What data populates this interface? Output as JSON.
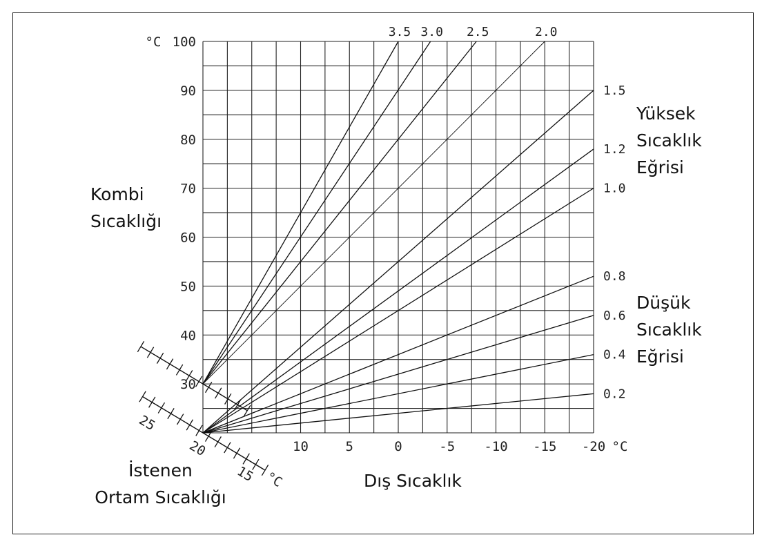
{
  "chart_data": {
    "type": "line",
    "title": "",
    "y_axis": {
      "label_lines": [
        "Kombi",
        "Sıcaklığı"
      ],
      "unit": "°C",
      "range": [
        20,
        100
      ],
      "tick_values": [
        30,
        40,
        50,
        60,
        70,
        80,
        90,
        100
      ],
      "tick_labels": [
        "30",
        "40",
        "50",
        "60",
        "70",
        "80",
        "90",
        "100"
      ]
    },
    "x_axis": {
      "label": "Dış Sıcaklık",
      "unit": "°C",
      "range": [
        20,
        -20
      ],
      "tick_values": [
        10,
        5,
        0,
        -5,
        -10,
        -15,
        -20
      ],
      "tick_labels": [
        "10",
        "5",
        "0",
        "-5",
        "-10",
        "-15",
        "-20"
      ]
    },
    "room_temp_axis": {
      "label_lines": [
        "İstenen",
        "Ortam Sıcaklığı"
      ],
      "unit": "°C",
      "tick_labels": [
        "25",
        "20",
        "15"
      ]
    },
    "series": [
      {
        "name": "3.5",
        "points": [
          [
            20,
            30
          ],
          [
            0.0,
            100
          ]
        ]
      },
      {
        "name": "3.0",
        "points": [
          [
            20,
            30
          ],
          [
            -3.3,
            100
          ]
        ]
      },
      {
        "name": "2.5",
        "points": [
          [
            20,
            30
          ],
          [
            -8.0,
            100
          ]
        ]
      },
      {
        "name": "2.0",
        "points": [
          [
            20,
            30
          ],
          [
            -15.0,
            100
          ]
        ]
      },
      {
        "name": "1.5",
        "points": [
          [
            20,
            20
          ],
          [
            -20,
            90
          ]
        ]
      },
      {
        "name": "1.2",
        "points": [
          [
            20,
            20
          ],
          [
            -20,
            78
          ]
        ]
      },
      {
        "name": "1.0",
        "points": [
          [
            20,
            20
          ],
          [
            -20,
            70
          ]
        ]
      },
      {
        "name": "0.8",
        "points": [
          [
            20,
            20
          ],
          [
            -20,
            52
          ]
        ]
      },
      {
        "name": "0.6",
        "points": [
          [
            20,
            20
          ],
          [
            -20,
            44
          ]
        ]
      },
      {
        "name": "0.4",
        "points": [
          [
            20,
            20
          ],
          [
            -20,
            36
          ]
        ]
      },
      {
        "name": "0.2",
        "points": [
          [
            20,
            20
          ],
          [
            -20,
            28
          ]
        ]
      }
    ],
    "curve_groups": [
      {
        "label_lines": [
          "Yüksek",
          "Sıcaklık",
          "Eğrisi"
        ],
        "curves": [
          "1.5",
          "1.2",
          "1.0"
        ]
      },
      {
        "label_lines": [
          "Düşük",
          "Sıcaklık",
          "Eğrisi"
        ],
        "curves": [
          "0.8",
          "0.6",
          "0.4",
          "0.2"
        ]
      }
    ],
    "grid": true
  }
}
